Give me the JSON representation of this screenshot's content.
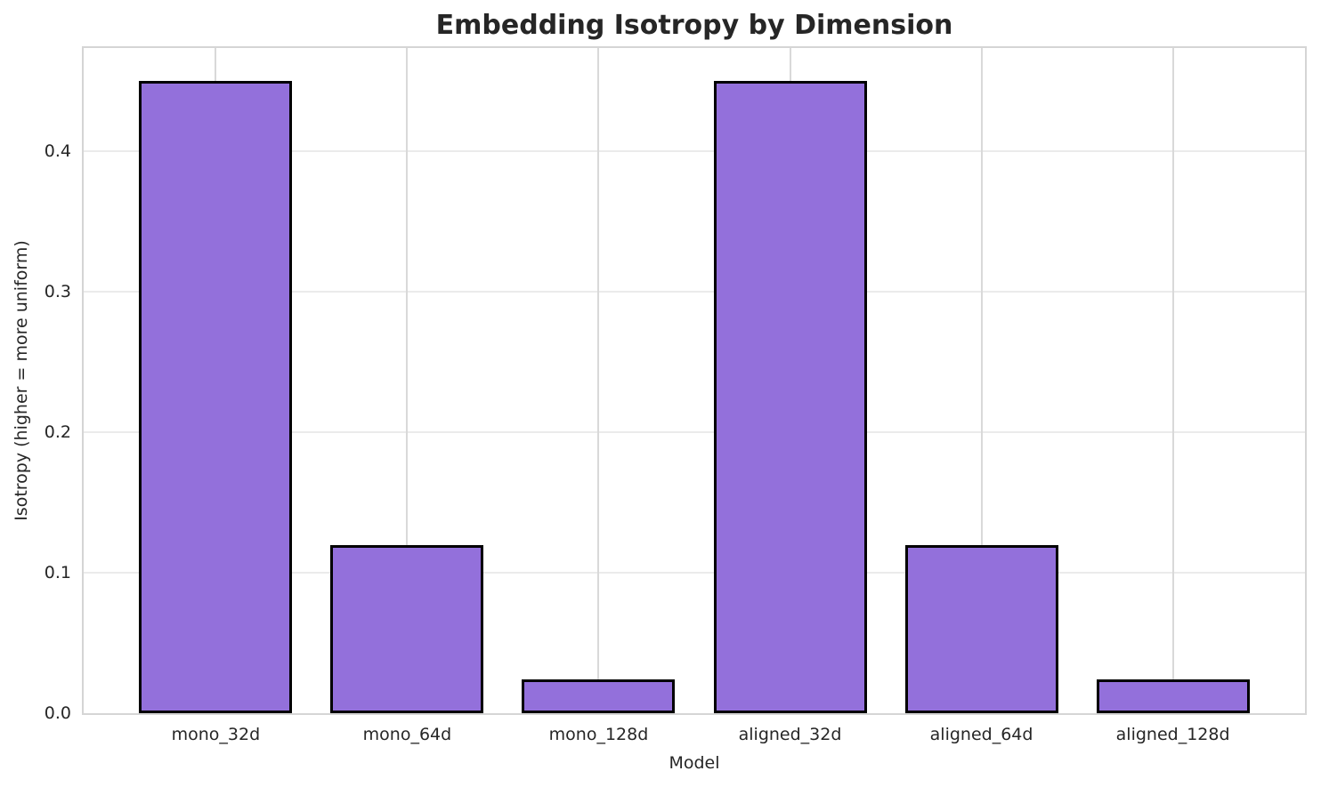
{
  "chart_data": {
    "type": "bar",
    "title": "Embedding Isotropy by Dimension",
    "xlabel": "Model",
    "ylabel": "Isotropy (higher = more uniform)",
    "categories": [
      "mono_32d",
      "mono_64d",
      "mono_128d",
      "aligned_32d",
      "aligned_64d",
      "aligned_128d"
    ],
    "values": [
      0.45,
      0.12,
      0.024,
      0.45,
      0.12,
      0.024
    ],
    "ylim": [
      0,
      0.4737
    ],
    "yticks": [
      0.0,
      0.1,
      0.2,
      0.3,
      0.4
    ],
    "ytick_labels": [
      "0.0",
      "0.1",
      "0.2",
      "0.3",
      "0.4"
    ],
    "xlim": [
      -0.69,
      5.69
    ],
    "bar_width_units": 0.8,
    "grid": "both",
    "legend": "none",
    "colors": {
      "bar_fill": "#9370db",
      "bar_edge": "#000000",
      "grid_horizontal": "#ebebeb",
      "grid_vertical": "#d9d9d9",
      "spine": "#d5d5d5",
      "text": "#262626",
      "background": "#ffffff"
    }
  }
}
